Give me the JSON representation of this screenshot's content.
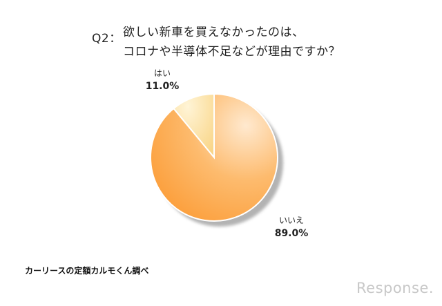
{
  "question": {
    "prefix": "Q2：",
    "line1": "欲しい新車を買えなかったのは、",
    "line2": "コロナや半導体不足などが理由ですか？"
  },
  "chart_data": {
    "type": "pie",
    "categories": [
      "はい",
      "いいえ"
    ],
    "values": [
      11.0,
      89.0
    ],
    "value_labels": [
      "11.0%",
      "89.0%"
    ],
    "colors": [
      "#fde2a8",
      "#fb9e3a"
    ]
  },
  "source": "カーリースの定額カルモくん調べ",
  "brand": "Response."
}
